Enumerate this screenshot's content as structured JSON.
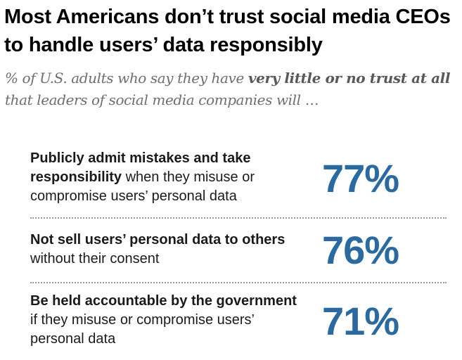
{
  "header": {
    "title": "Most Americans don’t trust social media CEOs to handle users’ data responsibly",
    "subtitle_part1": "% of U.S. adults who say they have ",
    "subtitle_emphasis": "very little or no trust at all",
    "subtitle_part2": " that leaders of social media companies will …"
  },
  "colors": {
    "accent": "#2a6aa0",
    "subtitle": "#6e6e6e",
    "divider": "#9a9a9a"
  },
  "chart_data": {
    "type": "table",
    "title": "Most Americans don’t trust social media CEOs to handle users’ data responsibly",
    "subtitle": "% of U.S. adults who say they have very little or no trust at all that leaders of social media companies will …",
    "unit": "%",
    "rows": [
      {
        "label_bold": "Publicly admit mistakes and take responsibility",
        "label_rest": " when they misuse or compromise users’ personal data",
        "value": 77,
        "display": "77%"
      },
      {
        "label_bold": "Not sell users’ personal data to others",
        "label_rest": " without their consent",
        "value": 76,
        "display": "76%"
      },
      {
        "label_bold": "Be held accountable by the government",
        "label_rest": " if they misuse or compromise users’ personal data",
        "value": 71,
        "display": "71%"
      }
    ]
  }
}
